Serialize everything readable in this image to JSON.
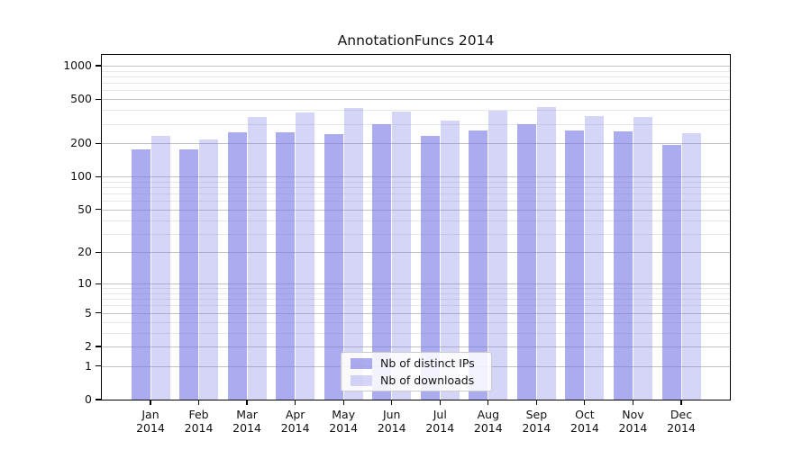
{
  "chart_data": {
    "type": "bar",
    "title": "AnnotationFuncs 2014",
    "categories": [
      "Jan",
      "Feb",
      "Mar",
      "Apr",
      "May",
      "Jun",
      "Jul",
      "Aug",
      "Sep",
      "Oct",
      "Nov",
      "Dec"
    ],
    "year": "2014",
    "series": [
      {
        "name": "Nb of distinct IPs",
        "color": "rgba(115,115,230,0.6)",
        "color_hex_on_white": "#a8a8f0",
        "values": [
          175,
          175,
          250,
          250,
          240,
          295,
          235,
          260,
          300,
          260,
          255,
          195
        ]
      },
      {
        "name": "Nb of downloads",
        "color": "rgba(115,115,230,0.3)",
        "color_hex_on_white": "#d8d8f8",
        "values": [
          235,
          215,
          345,
          380,
          420,
          385,
          320,
          390,
          425,
          355,
          345,
          245
        ]
      }
    ],
    "xlabel": "",
    "ylabel": "",
    "y_scale": "log1p",
    "ylim": [
      0,
      1250
    ],
    "y_ticks": [
      0,
      1,
      2,
      5,
      10,
      20,
      50,
      100,
      200,
      500,
      1000
    ],
    "y_minor_ticks": [
      3,
      4,
      6,
      7,
      8,
      9,
      30,
      40,
      60,
      70,
      80,
      90,
      300,
      400,
      600,
      700,
      800,
      900
    ],
    "grid": true,
    "legend_position": "lower center"
  },
  "colors": {
    "grid_major": "#c2c2c2",
    "grid_minor": "#e7e7e7",
    "axis": "#000000",
    "text": "#141414",
    "legend_border": "#cccccc",
    "background": "#ffffff"
  }
}
